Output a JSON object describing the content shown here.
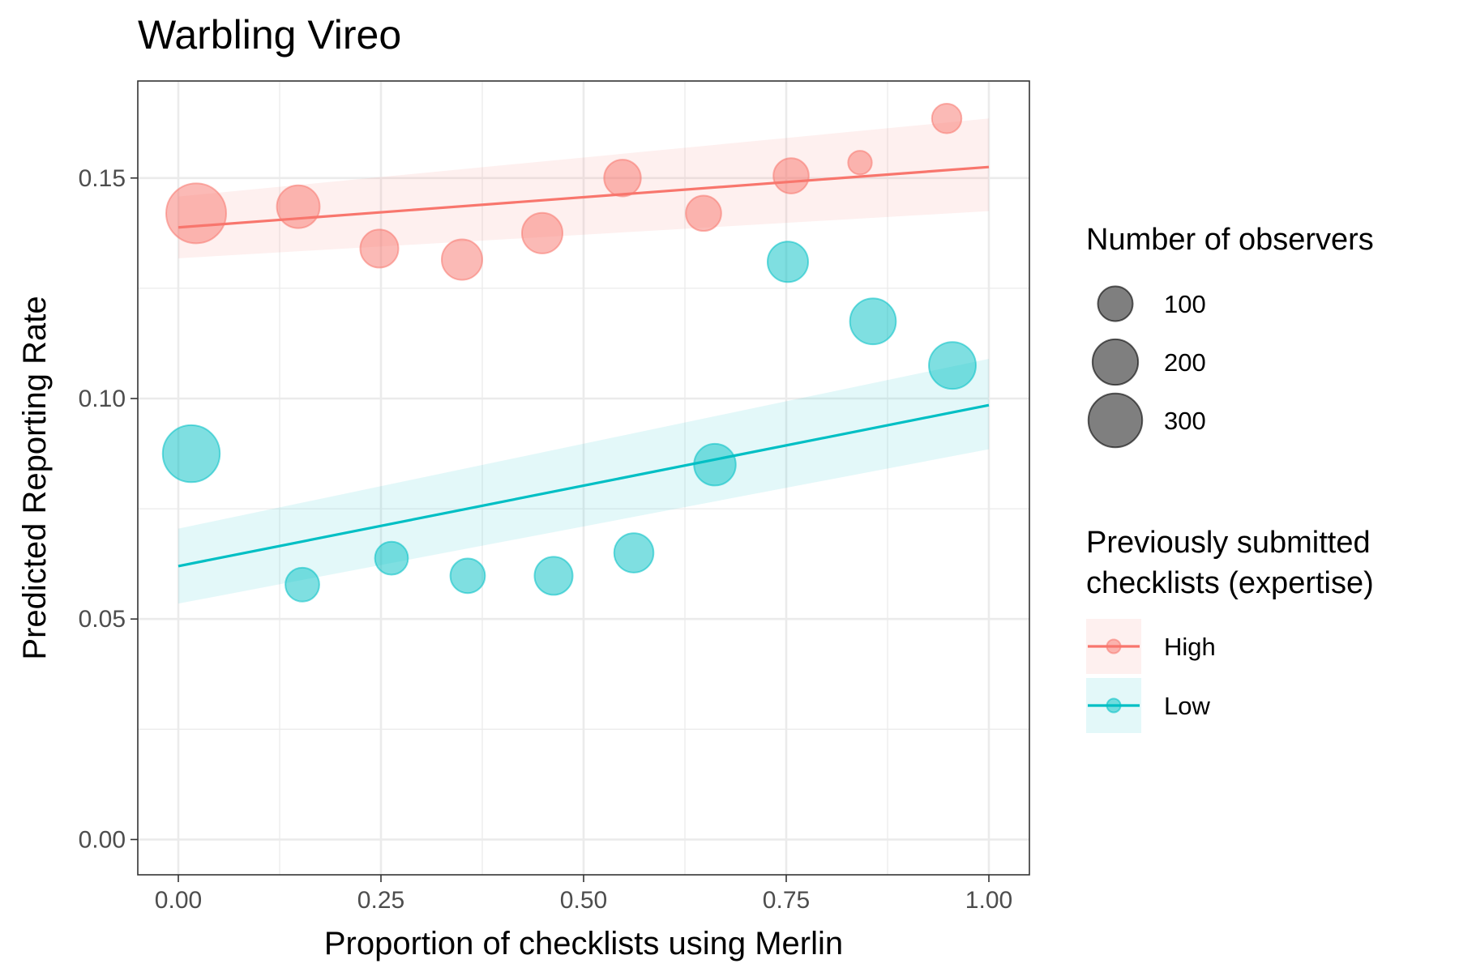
{
  "chart_data": {
    "type": "scatter",
    "title": "Warbling Vireo",
    "xlabel": "Proportion of checklists using Merlin",
    "ylabel": "Predicted Reporting Rate",
    "xlim": [
      -0.05,
      1.05
    ],
    "ylim": [
      -0.008,
      0.172
    ],
    "x_ticks": [
      0.0,
      0.25,
      0.5,
      0.75,
      1.0
    ],
    "x_tick_labels": [
      "0.00",
      "0.25",
      "0.50",
      "0.75",
      "1.00"
    ],
    "y_ticks": [
      0.0,
      0.05,
      0.1,
      0.15
    ],
    "y_tick_labels": [
      "0.00",
      "0.05",
      "0.10",
      "0.15"
    ],
    "grid": true,
    "legend_position": "right",
    "size_legend": {
      "title": "Number of observers",
      "entries": [
        {
          "label": "100",
          "value": 100
        },
        {
          "label": "200",
          "value": 200
        },
        {
          "label": "300",
          "value": 300
        }
      ]
    },
    "color_legend": {
      "title_lines": [
        "Previously submitted",
        "checklists (expertise)"
      ]
    },
    "series": [
      {
        "name": "High",
        "color": "#F8766D",
        "points": [
          {
            "x": 0.022,
            "y": 0.142,
            "n": 340
          },
          {
            "x": 0.148,
            "y": 0.1435,
            "n": 140
          },
          {
            "x": 0.248,
            "y": 0.134,
            "n": 100
          },
          {
            "x": 0.35,
            "y": 0.1315,
            "n": 120
          },
          {
            "x": 0.449,
            "y": 0.1375,
            "n": 120
          },
          {
            "x": 0.548,
            "y": 0.15,
            "n": 90
          },
          {
            "x": 0.648,
            "y": 0.142,
            "n": 80
          },
          {
            "x": 0.756,
            "y": 0.1505,
            "n": 80
          },
          {
            "x": 0.841,
            "y": 0.1535,
            "n": 20
          },
          {
            "x": 0.948,
            "y": 0.1635,
            "n": 45
          }
        ],
        "trend": {
          "x": [
            0.0,
            1.0
          ],
          "y": [
            0.1388,
            0.1525
          ]
        },
        "ci_lower": {
          "x": [
            0.0,
            1.0
          ],
          "y": [
            0.1318,
            0.1425
          ]
        },
        "ci_upper": {
          "x": [
            0.0,
            1.0
          ],
          "y": [
            0.1458,
            0.1635
          ]
        }
      },
      {
        "name": "Low",
        "color": "#00BFC4",
        "points": [
          {
            "x": 0.016,
            "y": 0.0875,
            "n": 300
          },
          {
            "x": 0.153,
            "y": 0.0578,
            "n": 70
          },
          {
            "x": 0.263,
            "y": 0.0638,
            "n": 65
          },
          {
            "x": 0.357,
            "y": 0.0598,
            "n": 75
          },
          {
            "x": 0.463,
            "y": 0.0598,
            "n": 100
          },
          {
            "x": 0.562,
            "y": 0.065,
            "n": 110
          },
          {
            "x": 0.662,
            "y": 0.085,
            "n": 130
          },
          {
            "x": 0.752,
            "y": 0.131,
            "n": 120
          },
          {
            "x": 0.857,
            "y": 0.1175,
            "n": 170
          },
          {
            "x": 0.955,
            "y": 0.1075,
            "n": 180
          }
        ],
        "trend": {
          "x": [
            0.0,
            1.0
          ],
          "y": [
            0.062,
            0.0985
          ]
        },
        "ci_lower": {
          "x": [
            0.0,
            1.0
          ],
          "y": [
            0.0535,
            0.0885
          ]
        },
        "ci_upper": {
          "x": [
            0.0,
            1.0
          ],
          "y": [
            0.0705,
            0.109
          ]
        }
      }
    ]
  }
}
